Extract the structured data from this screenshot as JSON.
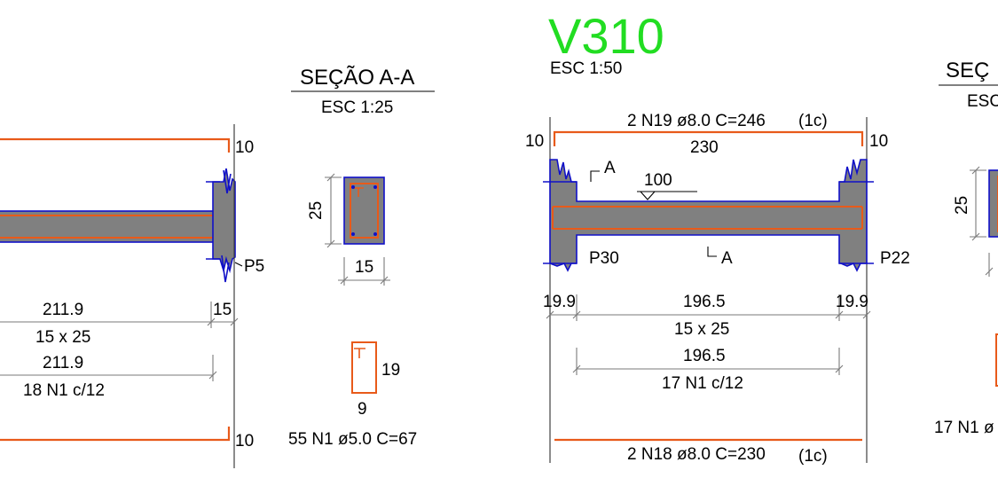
{
  "left_beam": {
    "top_offset": "10",
    "bottom_offset": "10",
    "support_label": "P5",
    "span_length": "211.9",
    "support_width": "15",
    "section_size": "15 x 25",
    "stirrup_span": "211.9",
    "stirrup_spec": "18 N1 c/12"
  },
  "section_left": {
    "title": "SEÇÃO A-A",
    "scale": "ESC 1:25",
    "height": "25",
    "width": "15",
    "stirrup_height": "19",
    "stirrup_width": "9",
    "stirrup_spec": "55 N1 ø5.0 C=67"
  },
  "beam_v310": {
    "name": "V310",
    "name_color": "#22dd22",
    "scale": "ESC 1:50",
    "top_bar_spec": "2 N19 ø8.0 C=246",
    "top_bar_layer": "(1c)",
    "top_bar_length": "230",
    "hook_left": "10",
    "hook_right": "10",
    "section_mark_top": "A",
    "section_mark_bottom": "A",
    "slab_level": "100",
    "support_left": "P30",
    "support_right": "P22",
    "left_support_width": "19.9",
    "clear_span": "196.5",
    "right_support_width": "19.9",
    "section_size": "15 x 25",
    "stirrup_span": "196.5",
    "stirrup_spec": "17 N1 c/12",
    "bottom_bar_spec": "2 N18 ø8.0 C=230",
    "bottom_bar_layer": "(1c)"
  },
  "section_right": {
    "title": "SEÇ",
    "scale": "ESC",
    "height": "25",
    "stirrup_spec": "17 N1 ø"
  },
  "colors": {
    "concrete": "#808080",
    "rebar": "#e85a1a",
    "outline": "#1010c8",
    "title": "#22dd22"
  }
}
